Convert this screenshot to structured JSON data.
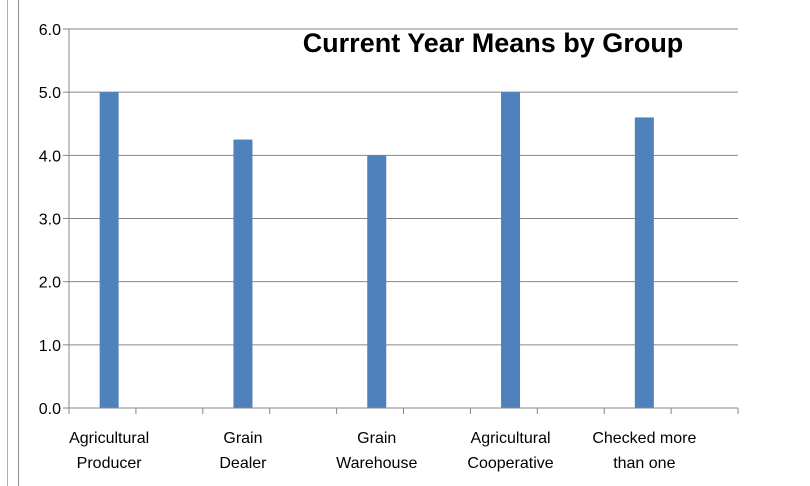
{
  "chart_data": {
    "type": "bar",
    "title": "Current Year Means by Group",
    "categories": [
      [
        "Agricultural",
        "Producer"
      ],
      [
        "Grain",
        "Dealer"
      ],
      [
        "Grain",
        "Warehouse"
      ],
      [
        "Agricultural",
        "Cooperative"
      ],
      [
        "Checked more",
        "than one"
      ]
    ],
    "values": [
      5.0,
      4.25,
      4.0,
      5.0,
      4.6
    ],
    "ylim": [
      0,
      6
    ],
    "yticks": [
      "0.0",
      "1.0",
      "2.0",
      "3.0",
      "4.0",
      "5.0",
      "6.0"
    ],
    "xlabel": "",
    "ylabel": "",
    "grid": true,
    "legend": "none",
    "colors": {
      "bar": "#4f81bd",
      "grid": "#878787",
      "axis": "#878787"
    }
  }
}
